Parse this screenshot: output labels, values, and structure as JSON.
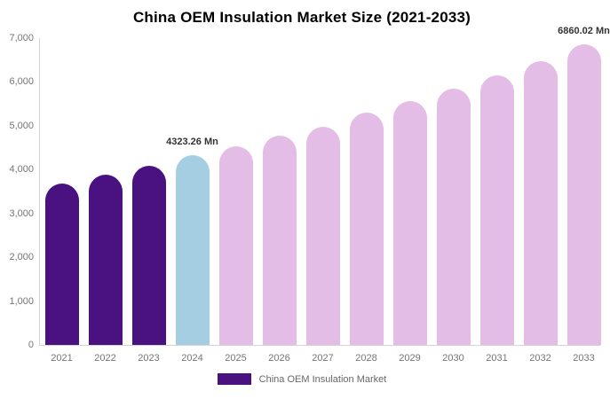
{
  "title": "China OEM Insulation Market Size (2021-2033)",
  "legend": {
    "label": "China OEM Insulation Market",
    "swatch_color": "#4A1280"
  },
  "colors": {
    "historical_bar": "#4A1280",
    "current_bar": "#A6CEE3",
    "forecast_bar": "#E3BDE6",
    "axis_line": "#d4d4d4",
    "tick_text": "#757575",
    "data_label_text": "#333333",
    "legend_text": "#666666",
    "title_text": "#000000"
  },
  "chart_data": {
    "type": "bar",
    "title": "China OEM Insulation Market Size (2021-2033)",
    "unit": "Mn",
    "categories": [
      "2021",
      "2022",
      "2023",
      "2024",
      "2025",
      "2026",
      "2027",
      "2028",
      "2029",
      "2030",
      "2031",
      "2032",
      "2033"
    ],
    "values": [
      3680,
      3885,
      4085,
      4323.26,
      4530,
      4775,
      4975,
      5300,
      5565,
      5845,
      6150,
      6475,
      6860.02
    ],
    "bar_colors": [
      "#4A1280",
      "#4A1280",
      "#4A1280",
      "#A6CEE3",
      "#E3BDE6",
      "#E3BDE6",
      "#E3BDE6",
      "#E3BDE6",
      "#E3BDE6",
      "#E3BDE6",
      "#E3BDE6",
      "#E3BDE6",
      "#E3BDE6"
    ],
    "annotations": [
      {
        "category": "2024",
        "text": "4323.26 Mn"
      },
      {
        "category": "2033",
        "text": "6860.02 Mn"
      }
    ],
    "xlabel": "",
    "ylabel": "",
    "ylim": [
      0,
      7000
    ],
    "ytick_step": 1000,
    "ytick_labels": [
      "0",
      "1,000",
      "2,000",
      "3,000",
      "4,000",
      "5,000",
      "6,000",
      "7,000"
    ],
    "grid": false,
    "legend_entries": [
      {
        "label": "China OEM Insulation Market",
        "color": "#4A1280"
      }
    ],
    "legend_position": "bottom"
  }
}
